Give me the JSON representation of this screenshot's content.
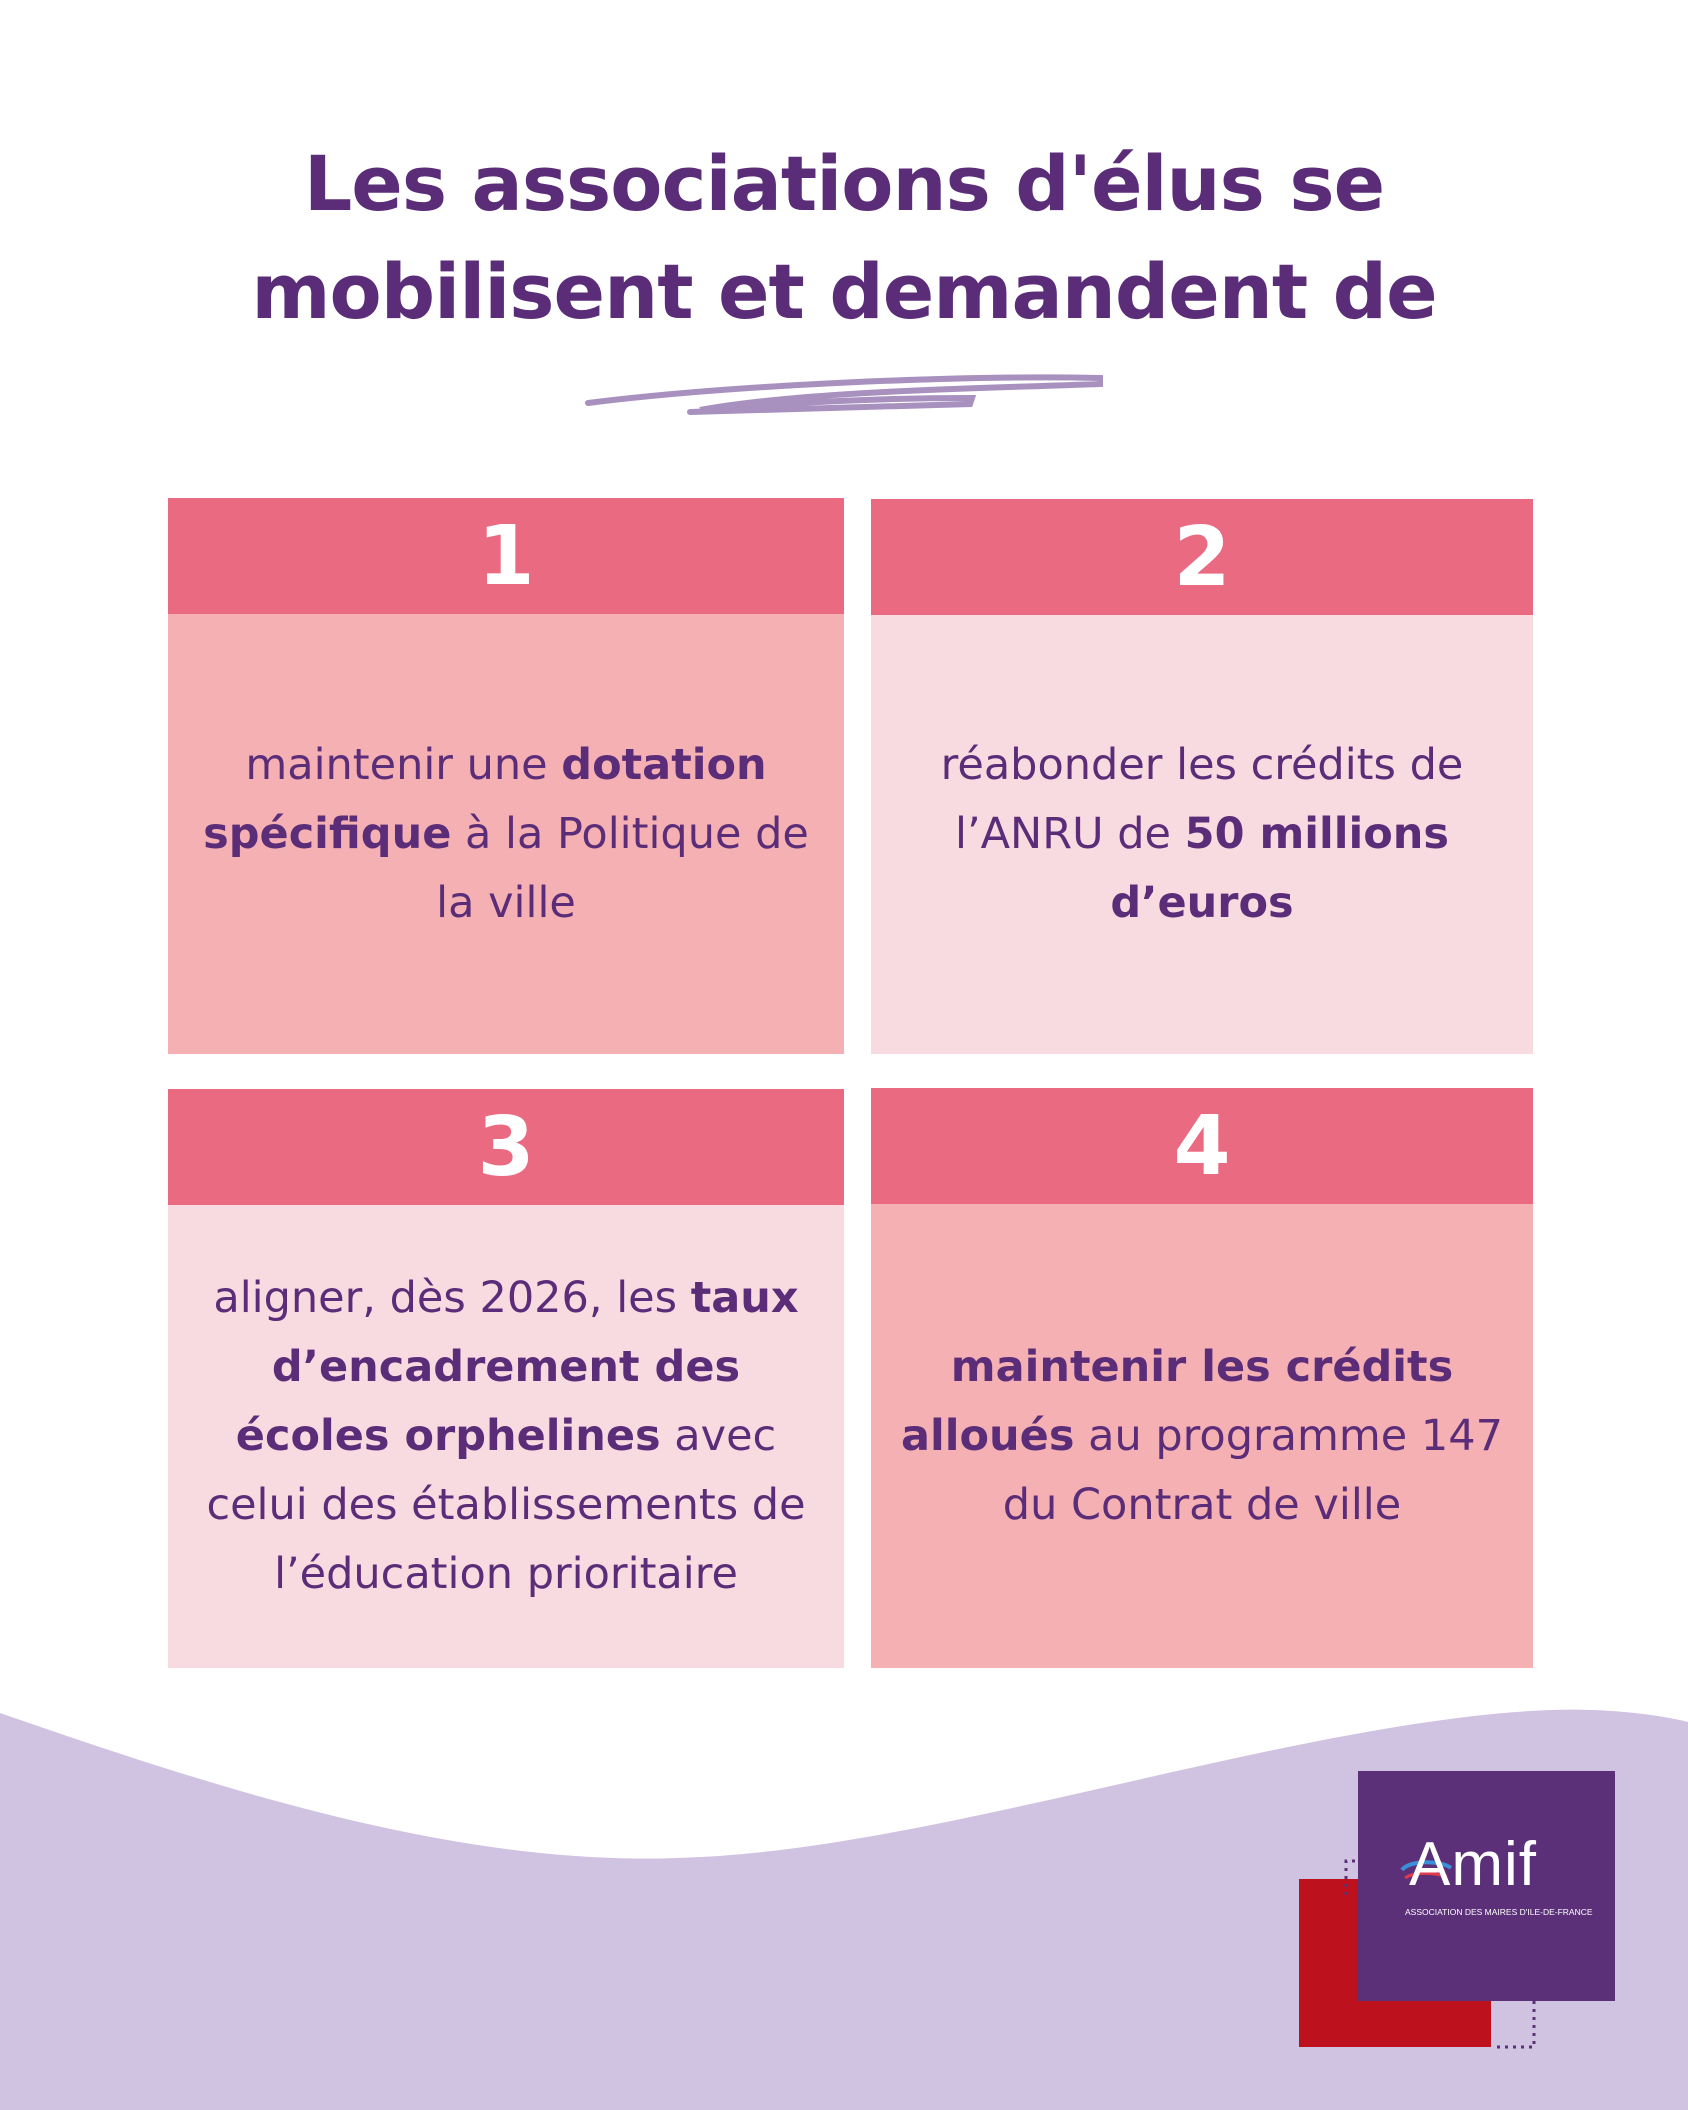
{
  "title": {
    "line1": "Les associations d'élus se",
    "line2": "mobilisent et demandent de"
  },
  "cards": [
    {
      "number": "1",
      "parts": [
        {
          "t": "maintenir une ",
          "b": false
        },
        {
          "t": "dotation spécifique",
          "b": true
        },
        {
          "t": " à la Politique de la ville",
          "b": false
        }
      ]
    },
    {
      "number": "2",
      "parts": [
        {
          "t": "réabonder les crédits de l’ANRU de ",
          "b": false
        },
        {
          "t": "50 millions d’euros",
          "b": true
        }
      ]
    },
    {
      "number": "3",
      "parts": [
        {
          "t": "aligner, dès 2026, les ",
          "b": false
        },
        {
          "t": "taux d’encadrement des écoles orphelines",
          "b": true
        },
        {
          "t": " avec celui des établissements de l’éducation prioritaire",
          "b": false
        }
      ]
    },
    {
      "number": "4",
      "parts": [
        {
          "t": "maintenir les crédits alloués",
          "b": true
        },
        {
          "t": " au programme 147 du Contrat de ville",
          "b": false
        }
      ]
    }
  ],
  "logo": {
    "word": "Amif",
    "tagline": "ASSOCIATION DES MAIRES D'ILE-DE-FRANCE"
  },
  "colors": {
    "text": "#5b2d78",
    "header": "#ea6a82",
    "card_dark": "#f4b0b3",
    "card_light": "#f8dae1",
    "wave": "#d0c3e1",
    "logo_purple": "#5b3078",
    "logo_red": "#be111e"
  }
}
